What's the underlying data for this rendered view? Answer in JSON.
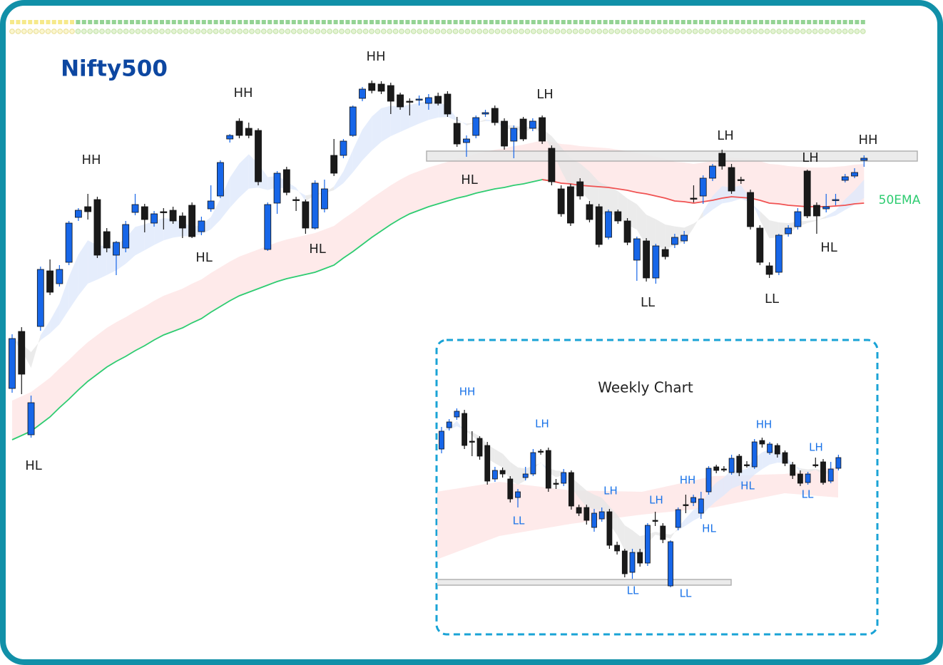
{
  "chart_data": [
    {
      "type": "candlestick",
      "title": "Nifty500",
      "title_color": "#0d47a1",
      "up_color": "#1766e8",
      "down_color": "#1a1a1a",
      "annotation_color": "#222222",
      "ylim": [
        0,
        700
      ],
      "ohlc": [
        [
          155,
          231,
          149,
          225
        ],
        [
          235,
          241,
          147,
          175
        ],
        [
          90,
          145,
          86,
          135
        ],
        [
          242,
          326,
          236,
          322
        ],
        [
          320,
          336,
          286,
          290
        ],
        [
          302,
          328,
          298,
          322
        ],
        [
          332,
          390,
          328,
          387
        ],
        [
          395,
          408,
          390,
          405
        ],
        [
          410,
          428,
          392,
          403
        ],
        [
          420,
          424,
          338,
          342
        ],
        [
          375,
          380,
          346,
          352
        ],
        [
          342,
          362,
          314,
          360
        ],
        [
          352,
          390,
          346,
          385
        ],
        [
          402,
          428,
          398,
          413
        ],
        [
          410,
          414,
          374,
          392
        ],
        [
          387,
          404,
          382,
          400
        ],
        [
          403,
          408,
          378,
          402
        ],
        [
          405,
          410,
          386,
          390
        ],
        [
          397,
          402,
          366,
          380
        ],
        [
          412,
          416,
          366,
          368
        ],
        [
          375,
          396,
          370,
          390
        ],
        [
          407,
          440,
          403,
          418
        ],
        [
          425,
          475,
          422,
          472
        ],
        [
          505,
          512,
          500,
          510
        ],
        [
          530,
          534,
          506,
          510
        ],
        [
          520,
          528,
          506,
          510
        ],
        [
          517,
          520,
          440,
          445
        ],
        [
          350,
          416,
          348,
          413
        ],
        [
          415,
          460,
          400,
          457
        ],
        [
          462,
          466,
          426,
          430
        ],
        [
          420,
          424,
          404,
          419
        ],
        [
          417,
          420,
          372,
          380
        ],
        [
          380,
          447,
          378,
          443
        ],
        [
          407,
          448,
          402,
          435
        ],
        [
          482,
          505,
          453,
          457
        ],
        [
          482,
          505,
          478,
          502
        ],
        [
          510,
          552,
          508,
          550
        ],
        [
          562,
          578,
          558,
          575
        ],
        [
          583,
          587,
          569,
          573
        ],
        [
          582,
          586,
          568,
          572
        ],
        [
          580,
          584,
          540,
          558
        ],
        [
          567,
          570,
          546,
          550
        ],
        [
          558,
          562,
          538,
          557
        ],
        [
          560,
          566,
          552,
          561
        ],
        [
          555,
          568,
          546,
          563
        ],
        [
          565,
          570,
          552,
          555
        ],
        [
          568,
          572,
          536,
          540
        ],
        [
          527,
          536,
          494,
          498
        ],
        [
          500,
          510,
          480,
          505
        ],
        [
          510,
          538,
          506,
          535
        ],
        [
          540,
          546,
          536,
          542
        ],
        [
          548,
          552,
          524,
          528
        ],
        [
          530,
          534,
          490,
          495
        ],
        [
          502,
          524,
          478,
          520
        ],
        [
          533,
          536,
          502,
          505
        ],
        [
          520,
          534,
          516,
          530
        ],
        [
          535,
          538,
          498,
          502
        ],
        [
          492,
          496,
          440,
          445
        ],
        [
          435,
          440,
          396,
          400
        ],
        [
          438,
          442,
          383,
          387
        ],
        [
          445,
          450,
          420,
          425
        ],
        [
          413,
          418,
          388,
          392
        ],
        [
          410,
          414,
          353,
          357
        ],
        [
          367,
          406,
          364,
          403
        ],
        [
          403,
          406,
          386,
          390
        ],
        [
          390,
          394,
          356,
          360
        ],
        [
          335,
          368,
          306,
          365
        ],
        [
          362,
          366,
          305,
          310
        ],
        [
          310,
          358,
          302,
          355
        ],
        [
          350,
          354,
          336,
          340
        ],
        [
          357,
          372,
          352,
          367
        ],
        [
          362,
          376,
          358,
          370
        ],
        [
          422,
          440,
          416,
          421
        ],
        [
          425,
          454,
          414,
          450
        ],
        [
          450,
          470,
          446,
          467
        ],
        [
          485,
          490,
          462,
          467
        ],
        [
          465,
          470,
          428,
          432
        ],
        [
          448,
          452,
          442,
          447
        ],
        [
          430,
          434,
          378,
          382
        ],
        [
          380,
          384,
          328,
          332
        ],
        [
          327,
          332,
          310,
          315
        ],
        [
          318,
          372,
          314,
          370
        ],
        [
          372,
          384,
          368,
          380
        ],
        [
          382,
          408,
          378,
          403
        ],
        [
          460,
          462,
          394,
          397
        ],
        [
          412,
          416,
          372,
          397
        ],
        [
          407,
          428,
          402,
          410
        ],
        [
          419,
          428,
          412,
          420
        ],
        [
          447,
          456,
          444,
          452
        ],
        [
          453,
          464,
          450,
          458
        ],
        [
          475,
          482,
          466,
          478
        ]
      ],
      "series": [
        {
          "name": "50EMA",
          "color": "#2ecc71",
          "color_below": "#f05252",
          "values": [
            83,
            89,
            95,
            105,
            115,
            128,
            140,
            153,
            165,
            175,
            185,
            193,
            200,
            208,
            215,
            223,
            230,
            235,
            240,
            247,
            253,
            262,
            270,
            278,
            285,
            290,
            295,
            300,
            305,
            309,
            312,
            315,
            318,
            323,
            328,
            338,
            347,
            357,
            367,
            376,
            385,
            393,
            400,
            405,
            410,
            414,
            418,
            422,
            425,
            429,
            432,
            435,
            437,
            440,
            442,
            445,
            448,
            446,
            443,
            442,
            440,
            439,
            438,
            437,
            435,
            433,
            430,
            428,
            425,
            422,
            418,
            417,
            415,
            417,
            419,
            422,
            424,
            423,
            422,
            419,
            415,
            414,
            412,
            411,
            410,
            410,
            410,
            411,
            412,
            414,
            415
          ]
        }
      ],
      "resistance_zone": [
        474,
        488
      ],
      "annotations": [
        "HL",
        "HH",
        "HL",
        "HH",
        "HL",
        "HH",
        "HL",
        "LH",
        "LL",
        "LH",
        "LL",
        "LH",
        "HL",
        "HH"
      ]
    },
    {
      "type": "candlestick",
      "title": "Weekly Chart",
      "title_color": "#222222",
      "up_color": "#1766e8",
      "down_color": "#1a1a1a",
      "annotation_color": "#1a73e8",
      "ylim": [
        0,
        900
      ],
      "ohlc": [
        [
          270,
          301,
          264,
          295
        ],
        [
          300,
          312,
          296,
          308
        ],
        [
          315,
          327,
          311,
          323
        ],
        [
          320,
          325,
          270,
          275
        ],
        [
          281,
          295,
          260,
          280
        ],
        [
          285,
          288,
          255,
          260
        ],
        [
          275,
          280,
          220,
          225
        ],
        [
          228,
          245,
          224,
          240
        ],
        [
          240,
          244,
          230,
          235
        ],
        [
          228,
          232,
          195,
          200
        ],
        [
          202,
          214,
          188,
          210
        ],
        [
          230,
          245,
          226,
          235
        ],
        [
          235,
          270,
          232,
          265
        ],
        [
          267,
          270,
          262,
          266
        ],
        [
          268,
          272,
          210,
          215
        ],
        [
          222,
          228,
          214,
          221
        ],
        [
          222,
          242,
          218,
          237
        ],
        [
          237,
          240,
          185,
          190
        ],
        [
          188,
          192,
          176,
          180
        ],
        [
          188,
          192,
          164,
          170
        ],
        [
          160,
          186,
          154,
          180
        ],
        [
          172,
          188,
          168,
          182
        ],
        [
          182,
          186,
          130,
          135
        ],
        [
          135,
          140,
          122,
          127
        ],
        [
          127,
          130,
          90,
          95
        ],
        [
          97,
          130,
          88,
          125
        ],
        [
          125,
          130,
          105,
          110
        ],
        [
          110,
          166,
          106,
          163
        ],
        [
          170,
          182,
          162,
          169
        ],
        [
          162,
          166,
          138,
          143
        ],
        [
          78,
          142,
          76,
          140
        ],
        [
          160,
          188,
          156,
          185
        ],
        [
          192,
          206,
          180,
          191
        ],
        [
          195,
          206,
          190,
          202
        ],
        [
          180,
          210,
          172,
          200
        ],
        [
          210,
          246,
          206,
          243
        ],
        [
          245,
          248,
          236,
          240
        ],
        [
          242,
          246,
          238,
          241
        ],
        [
          237,
          262,
          234,
          257
        ],
        [
          260,
          263,
          232,
          237
        ],
        [
          248,
          253,
          244,
          247
        ],
        [
          245,
          284,
          242,
          280
        ],
        [
          282,
          286,
          272,
          277
        ],
        [
          265,
          280,
          262,
          277
        ],
        [
          275,
          278,
          258,
          263
        ],
        [
          265,
          268,
          246,
          250
        ],
        [
          248,
          252,
          228,
          233
        ],
        [
          235,
          240,
          218,
          222
        ],
        [
          223,
          238,
          220,
          235
        ],
        [
          248,
          258,
          244,
          247
        ],
        [
          252,
          256,
          220,
          223
        ],
        [
          225,
          252,
          222,
          242
        ],
        [
          243,
          262,
          240,
          258
        ]
      ],
      "support_zone": [
        79,
        87
      ],
      "annotations": [
        "HH",
        "LH",
        "LL",
        "LH",
        "LH",
        "HH",
        "LL",
        "LL",
        "HL",
        "HL",
        "HH",
        "LH",
        "LL"
      ]
    }
  ]
}
